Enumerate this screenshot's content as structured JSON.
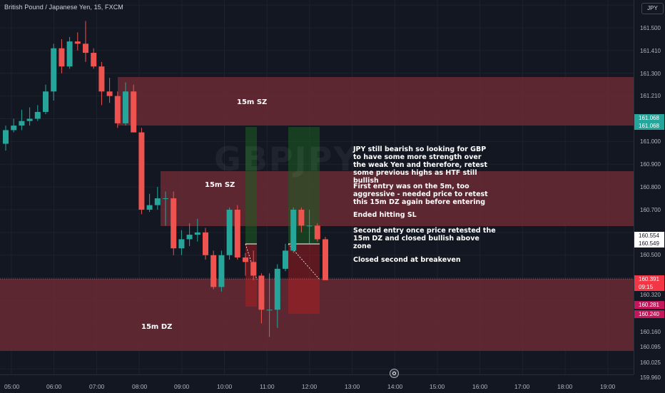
{
  "header": {
    "symbol_title": "British Pound / Japanese Yen, 15, FXCM",
    "watermark": "GBPJPY"
  },
  "price_axis": {
    "currency_label": "JPY",
    "ticks": [
      "161.500",
      "161.410",
      "161.300",
      "161.210",
      "161.000",
      "160.900",
      "160.800",
      "160.700",
      "160.500",
      "160.320",
      "160.160",
      "160.095",
      "160.025",
      "159.960"
    ],
    "badges": [
      {
        "label": "161.068",
        "color": "#26a69a"
      },
      {
        "label": "161.068",
        "color": "#26a69a"
      },
      {
        "label": "160.554",
        "color": "#ffffff"
      },
      {
        "label": "160.549",
        "color": "#ffffff"
      },
      {
        "label": "160.391",
        "color": "#f23645"
      },
      {
        "label": "09:15",
        "color": "#f23645"
      },
      {
        "label": "160.281",
        "color": "#c2185b"
      },
      {
        "label": "160.240",
        "color": "#c2185b"
      }
    ]
  },
  "time_axis": {
    "ticks": [
      "05:00",
      "06:00",
      "07:00",
      "08:00",
      "09:00",
      "10:00",
      "11:00",
      "12:00",
      "13:00",
      "14:00",
      "15:00",
      "16:00",
      "17:00",
      "18:00",
      "19:00"
    ]
  },
  "zones": [
    {
      "label": "15m SZ",
      "kind": "supply"
    },
    {
      "label": "15m SZ",
      "kind": "supply"
    },
    {
      "label": "15m DZ",
      "kind": "demand"
    }
  ],
  "notes": [
    "JPY still bearish so looking for GBP to have some more strength over the weak Yen and therefore, retest some previous highs as HTF still bullish",
    "First entry was on the 5m, too aggressive - needed price to retest this 15m DZ again before entering",
    "Ended hitting SL",
    "Second entry once price retested the 15m DZ and closed bullish above zone",
    "Closed second at breakeven"
  ],
  "colors": {
    "background": "#131722",
    "bull": "#26a69a",
    "bear": "#ef5350",
    "zone": "#6b2a35"
  },
  "chart_data": {
    "type": "candlestick",
    "interval": "15m",
    "candles": [
      {
        "o": 160.99,
        "h": 161.07,
        "l": 160.96,
        "c": 161.05
      },
      {
        "o": 161.05,
        "h": 161.1,
        "l": 161.04,
        "c": 161.07
      },
      {
        "o": 161.07,
        "h": 161.14,
        "l": 161.05,
        "c": 161.09
      },
      {
        "o": 161.09,
        "h": 161.15,
        "l": 161.07,
        "c": 161.1
      },
      {
        "o": 161.1,
        "h": 161.16,
        "l": 161.09,
        "c": 161.13
      },
      {
        "o": 161.13,
        "h": 161.25,
        "l": 161.12,
        "c": 161.22
      },
      {
        "o": 161.22,
        "h": 161.43,
        "l": 161.18,
        "c": 161.41
      },
      {
        "o": 161.41,
        "h": 161.45,
        "l": 161.3,
        "c": 161.33
      },
      {
        "o": 161.33,
        "h": 161.46,
        "l": 161.32,
        "c": 161.44
      },
      {
        "o": 161.44,
        "h": 161.48,
        "l": 161.4,
        "c": 161.43
      },
      {
        "o": 161.43,
        "h": 161.53,
        "l": 161.35,
        "c": 161.39
      },
      {
        "o": 161.39,
        "h": 161.41,
        "l": 161.32,
        "c": 161.33
      },
      {
        "o": 161.33,
        "h": 161.35,
        "l": 161.16,
        "c": 161.22
      },
      {
        "o": 161.22,
        "h": 161.28,
        "l": 161.17,
        "c": 161.2
      },
      {
        "o": 161.2,
        "h": 161.22,
        "l": 161.06,
        "c": 161.08
      },
      {
        "o": 161.08,
        "h": 161.26,
        "l": 161.07,
        "c": 161.22
      },
      {
        "o": 161.22,
        "h": 161.25,
        "l": 161.04,
        "c": 161.04
      },
      {
        "o": 161.04,
        "h": 161.06,
        "l": 160.68,
        "c": 160.7
      },
      {
        "o": 160.7,
        "h": 160.77,
        "l": 160.69,
        "c": 160.72
      },
      {
        "o": 160.72,
        "h": 160.8,
        "l": 160.7,
        "c": 160.75
      },
      {
        "o": 160.75,
        "h": 160.78,
        "l": 160.63,
        "c": 160.75
      },
      {
        "o": 160.75,
        "h": 160.78,
        "l": 160.5,
        "c": 160.53
      },
      {
        "o": 160.53,
        "h": 160.61,
        "l": 160.5,
        "c": 160.57
      },
      {
        "o": 160.57,
        "h": 160.64,
        "l": 160.54,
        "c": 160.59
      },
      {
        "o": 160.59,
        "h": 160.66,
        "l": 160.56,
        "c": 160.6
      },
      {
        "o": 160.6,
        "h": 160.62,
        "l": 160.48,
        "c": 160.5
      },
      {
        "o": 160.5,
        "h": 160.52,
        "l": 160.35,
        "c": 160.36
      },
      {
        "o": 160.36,
        "h": 160.52,
        "l": 160.34,
        "c": 160.5
      },
      {
        "o": 160.5,
        "h": 160.71,
        "l": 160.48,
        "c": 160.7
      },
      {
        "o": 160.7,
        "h": 160.72,
        "l": 160.48,
        "c": 160.49
      },
      {
        "o": 160.49,
        "h": 160.51,
        "l": 160.41,
        "c": 160.47
      },
      {
        "o": 160.47,
        "h": 160.52,
        "l": 160.39,
        "c": 160.41
      },
      {
        "o": 160.41,
        "h": 160.42,
        "l": 160.2,
        "c": 160.26
      },
      {
        "o": 160.26,
        "h": 160.42,
        "l": 160.14,
        "c": 160.26
      },
      {
        "o": 160.26,
        "h": 160.46,
        "l": 160.18,
        "c": 160.44
      },
      {
        "o": 160.44,
        "h": 160.55,
        "l": 160.43,
        "c": 160.52
      },
      {
        "o": 160.52,
        "h": 160.71,
        "l": 160.51,
        "c": 160.7
      },
      {
        "o": 160.7,
        "h": 160.71,
        "l": 160.6,
        "c": 160.63
      },
      {
        "o": 160.63,
        "h": 160.7,
        "l": 160.55,
        "c": 160.63
      },
      {
        "o": 160.63,
        "h": 160.64,
        "l": 160.56,
        "c": 160.57
      },
      {
        "o": 160.57,
        "h": 160.58,
        "l": 160.39,
        "c": 160.39
      }
    ]
  }
}
